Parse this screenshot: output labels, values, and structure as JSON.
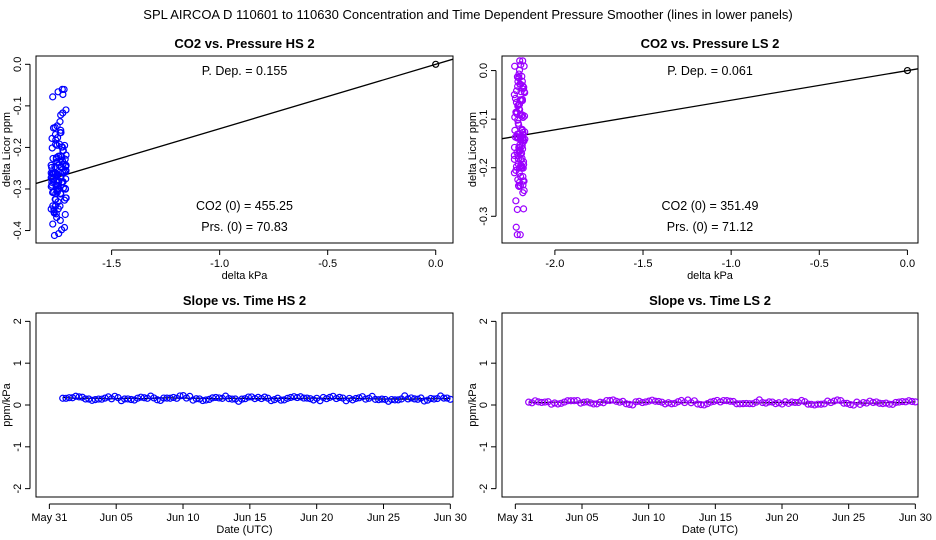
{
  "suptitle": "SPL   AIRCOA D   110601 to 110630   Concentration and Time Dependent Pressure Smoother (lines in lower panels)",
  "chart_data": [
    {
      "id": "hs-pressure",
      "type": "scatter",
      "title": "CO2 vs. Pressure HS 2",
      "xlabel": "delta kPa",
      "ylabel": "delta Licor ppm",
      "xlim": [
        -1.85,
        0.08
      ],
      "ylim": [
        -0.43,
        0.02
      ],
      "xticks": [
        -1.5,
        -1.0,
        -0.5,
        0.0
      ],
      "xtick_labels": [
        "-1.5",
        "-1.0",
        "-0.5",
        "0.0"
      ],
      "yticks": [
        0.0,
        -0.1,
        -0.2,
        -0.3,
        -0.4
      ],
      "ytick_labels": [
        "0.0",
        "-0.1",
        "-0.2",
        "-0.3",
        "-0.4"
      ],
      "color": "#0000ff",
      "cluster": {
        "x_center": -1.745,
        "x_spread": 0.035,
        "y_min": -0.42,
        "y_max": -0.06,
        "y_center": -0.27,
        "n": 120
      },
      "origin_point": {
        "x": 0.0,
        "y": 0.0
      },
      "fit_line": {
        "slope": 0.155,
        "intercept": 0.0
      },
      "annotations": [
        {
          "label": "P. Dep. =  0.155",
          "pos": "top-center"
        },
        {
          "label": "CO2 (0) =  455.25",
          "pos": "bottom-center-1"
        },
        {
          "label": "Prs. (0) =  70.83",
          "pos": "bottom-center-2"
        }
      ]
    },
    {
      "id": "ls-pressure",
      "type": "scatter",
      "title": "CO2 vs. Pressure LS 2",
      "xlabel": "delta kPa",
      "ylabel": "delta Licor ppm",
      "xlim": [
        -2.3,
        0.06
      ],
      "ylim": [
        -0.355,
        0.03
      ],
      "xticks": [
        -2.0,
        -1.5,
        -1.0,
        -0.5,
        0.0
      ],
      "xtick_labels": [
        "-2.0",
        "-1.5",
        "-1.0",
        "-0.5",
        "0.0"
      ],
      "yticks": [
        0.0,
        -0.1,
        -0.2,
        -0.3
      ],
      "ytick_labels": [
        "0.0",
        "-0.1",
        "-0.2",
        "-0.3"
      ],
      "color": "#9b00ff",
      "cluster": {
        "x_center": -2.2,
        "x_spread": 0.03,
        "y_min": -0.345,
        "y_max": 0.02,
        "y_center": -0.13,
        "n": 120
      },
      "origin_point": {
        "x": 0.0,
        "y": 0.0
      },
      "fit_line": {
        "slope": 0.061,
        "intercept": 0.0
      },
      "annotations": [
        {
          "label": "P. Dep. =  0.061",
          "pos": "top-center"
        },
        {
          "label": "CO2 (0) =  351.49",
          "pos": "bottom-center-1"
        },
        {
          "label": "Prs. (0) =  71.12",
          "pos": "bottom-center-2"
        }
      ]
    },
    {
      "id": "hs-time",
      "type": "line",
      "title": "Slope vs. Time HS 2",
      "xlabel": "Date (UTC)",
      "ylabel": "ppm/kPa",
      "xlim": [
        30.0,
        61.2
      ],
      "ylim": [
        -2.2,
        2.2
      ],
      "xticks": [
        31,
        36,
        41,
        46,
        51,
        56,
        61
      ],
      "xtick_labels": [
        "May 31",
        "Jun 05",
        "Jun 10",
        "Jun 15",
        "Jun 20",
        "Jun 25",
        "Jun 30"
      ],
      "yticks": [
        -2,
        -1,
        0,
        1,
        2
      ],
      "ytick_labels": [
        "-2",
        "-1",
        "0",
        "1",
        "2"
      ],
      "color": "#0000ff",
      "series_x_range": [
        32.0,
        61.0
      ],
      "n_points": 120,
      "mean": 0.155,
      "variation": 0.05
    },
    {
      "id": "ls-time",
      "type": "line",
      "title": "Slope vs. Time LS 2",
      "xlabel": "Date (UTC)",
      "ylabel": "ppm/kPa",
      "xlim": [
        30.0,
        61.2
      ],
      "ylim": [
        -2.2,
        2.2
      ],
      "xticks": [
        31,
        36,
        41,
        46,
        51,
        56,
        61
      ],
      "xtick_labels": [
        "May 31",
        "Jun 05",
        "Jun 10",
        "Jun 15",
        "Jun 20",
        "Jun 25",
        "Jun 30"
      ],
      "yticks": [
        -2,
        -1,
        0,
        1,
        2
      ],
      "ytick_labels": [
        "-2",
        "-1",
        "0",
        "1",
        "2"
      ],
      "color": "#9b00ff",
      "series_x_range": [
        32.0,
        61.0
      ],
      "n_points": 120,
      "mean": 0.061,
      "variation": 0.045
    }
  ]
}
